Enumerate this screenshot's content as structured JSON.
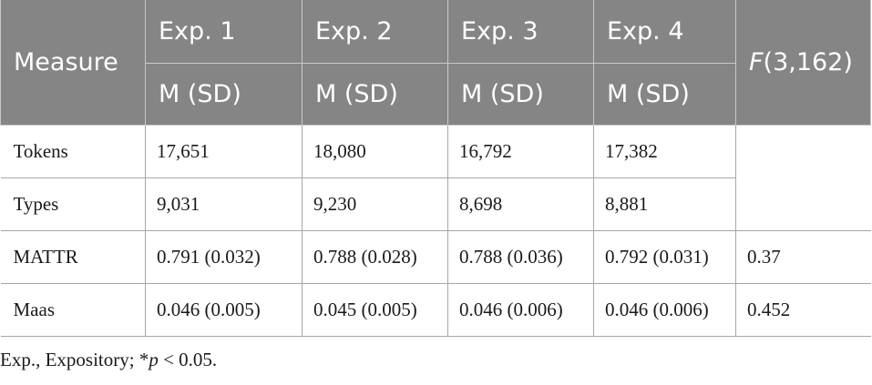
{
  "table": {
    "header": {
      "measure": "Measure",
      "experiments": [
        "Exp. 1",
        "Exp. 2",
        "Exp. 3",
        "Exp. 4"
      ],
      "subheader": "M (SD)",
      "f_stat_letter": "F",
      "f_stat_rest": "(3,162)"
    },
    "rows": [
      {
        "measure": "Tokens",
        "values": [
          "17,651",
          "18,080",
          "16,792",
          "17,382"
        ],
        "f": ""
      },
      {
        "measure": "Types",
        "values": [
          "9,031",
          "9,230",
          "8,698",
          "8,881"
        ],
        "f": ""
      },
      {
        "measure": "MATTR",
        "values": [
          "0.791 (0.032)",
          "0.788 (0.028)",
          "0.788 (0.036)",
          "0.792 (0.031)"
        ],
        "f": "0.37"
      },
      {
        "measure": "Maas",
        "values": [
          "0.046 (0.005)",
          "0.045 (0.005)",
          "0.046 (0.006)",
          "0.046 (0.006)"
        ],
        "f": "0.452"
      }
    ]
  },
  "footnote": {
    "prefix": "Exp., Expository; *",
    "p_symbol": "p",
    "suffix": " < 0.05."
  }
}
